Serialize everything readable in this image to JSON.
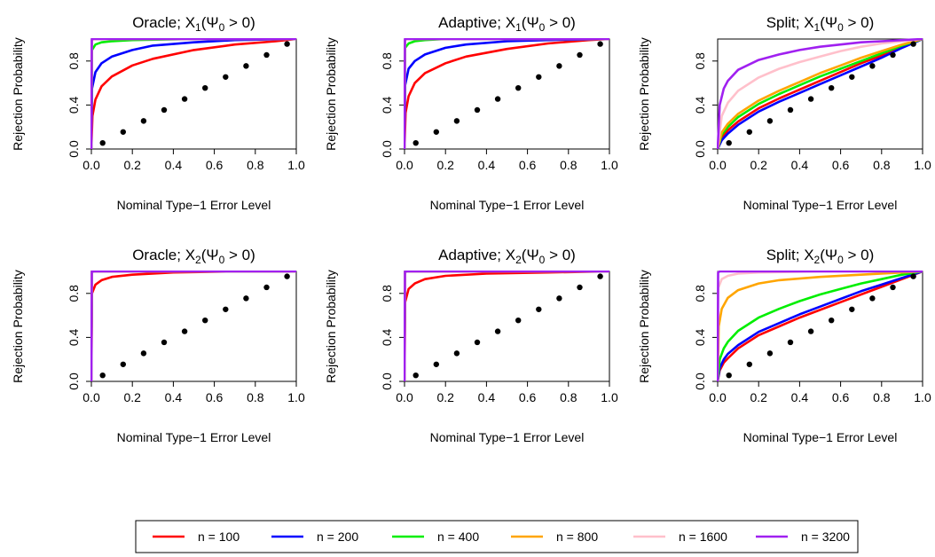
{
  "figure": {
    "legend_entries": [
      {
        "label": "n = 100",
        "color": "#ff0000"
      },
      {
        "label": "n = 200",
        "color": "#0000ff"
      },
      {
        "label": "n = 400",
        "color": "#00ee00"
      },
      {
        "label": "n = 800",
        "color": "#ffa500"
      },
      {
        "label": "n = 1600",
        "color": "#ffc0cb"
      },
      {
        "label": "n = 3200",
        "color": "#a020f0"
      }
    ]
  },
  "chart_data": [
    {
      "type": "line",
      "title": {
        "prefix": "Oracle; X",
        "sub": "1",
        "suffix": "(Ψ",
        "sub2": "0",
        "rest": " > 0)"
      },
      "xlabel": "Nominal Type−1 Error Level",
      "ylabel": "Rejection Probability",
      "xlim": [
        0,
        1
      ],
      "ylim": [
        0,
        1
      ],
      "xticks": [
        "0.0",
        "0.2",
        "0.4",
        "0.6",
        "0.8",
        "1.0"
      ],
      "yticks": [
        "0.0",
        "0.4",
        "0.8"
      ],
      "reference_points": [
        0.1,
        0.2,
        0.3,
        0.4,
        0.5,
        0.6,
        0.7,
        0.8,
        0.9,
        1.0
      ],
      "series": [
        {
          "name": "n = 100",
          "color": "#ff0000",
          "x": [
            0,
            0.005,
            0.02,
            0.05,
            0.1,
            0.2,
            0.3,
            0.5,
            0.7,
            0.9,
            1.0
          ],
          "y": [
            0,
            0.3,
            0.45,
            0.57,
            0.66,
            0.76,
            0.82,
            0.9,
            0.95,
            0.98,
            1.0
          ]
        },
        {
          "name": "n = 200",
          "color": "#0000ff",
          "x": [
            0,
            0.003,
            0.02,
            0.05,
            0.1,
            0.2,
            0.3,
            0.5,
            0.7,
            1.0
          ],
          "y": [
            0,
            0.55,
            0.7,
            0.78,
            0.84,
            0.9,
            0.94,
            0.97,
            0.99,
            1.0
          ]
        },
        {
          "name": "n = 400",
          "color": "#00ee00",
          "x": [
            0,
            0.003,
            0.02,
            0.05,
            0.1,
            0.2,
            0.5,
            1.0
          ],
          "y": [
            0,
            0.9,
            0.95,
            0.97,
            0.98,
            0.99,
            1.0,
            1.0
          ]
        },
        {
          "name": "n = 800",
          "color": "#ffa500",
          "x": [
            0,
            0.002,
            0.01,
            0.05,
            1.0
          ],
          "y": [
            0,
            0.99,
            1.0,
            1.0,
            1.0
          ]
        },
        {
          "name": "n = 1600",
          "color": "#ffc0cb",
          "x": [
            0,
            0.002,
            0.01,
            1.0
          ],
          "y": [
            0,
            1.0,
            1.0,
            1.0
          ]
        },
        {
          "name": "n = 3200",
          "color": "#a020f0",
          "x": [
            0,
            0.002,
            1.0
          ],
          "y": [
            0,
            1.0,
            1.0
          ]
        }
      ]
    },
    {
      "type": "line",
      "title": {
        "prefix": "Adaptive; X",
        "sub": "1",
        "suffix": "(Ψ",
        "sub2": "0",
        "rest": " > 0)"
      },
      "xlabel": "Nominal Type−1 Error Level",
      "ylabel": "Rejection Probability",
      "xlim": [
        0,
        1
      ],
      "ylim": [
        0,
        1
      ],
      "xticks": [
        "0.0",
        "0.2",
        "0.4",
        "0.6",
        "0.8",
        "1.0"
      ],
      "yticks": [
        "0.0",
        "0.4",
        "0.8"
      ],
      "reference_points": [
        0.1,
        0.2,
        0.3,
        0.4,
        0.5,
        0.6,
        0.7,
        0.8,
        0.9,
        1.0
      ],
      "series": [
        {
          "name": "n = 100",
          "color": "#ff0000",
          "x": [
            0,
            0.005,
            0.02,
            0.05,
            0.1,
            0.2,
            0.3,
            0.5,
            0.7,
            0.9,
            1.0
          ],
          "y": [
            0,
            0.33,
            0.48,
            0.6,
            0.69,
            0.78,
            0.84,
            0.91,
            0.96,
            0.99,
            1.0
          ]
        },
        {
          "name": "n = 200",
          "color": "#0000ff",
          "x": [
            0,
            0.003,
            0.02,
            0.05,
            0.1,
            0.2,
            0.3,
            0.5,
            0.7,
            1.0
          ],
          "y": [
            0,
            0.58,
            0.73,
            0.8,
            0.86,
            0.92,
            0.95,
            0.98,
            0.99,
            1.0
          ]
        },
        {
          "name": "n = 400",
          "color": "#00ee00",
          "x": [
            0,
            0.003,
            0.02,
            0.05,
            0.1,
            0.2,
            0.5,
            1.0
          ],
          "y": [
            0,
            0.92,
            0.96,
            0.98,
            0.99,
            1.0,
            1.0,
            1.0
          ]
        },
        {
          "name": "n = 800",
          "color": "#ffa500",
          "x": [
            0,
            0.002,
            0.01,
            1.0
          ],
          "y": [
            0,
            0.99,
            1.0,
            1.0
          ]
        },
        {
          "name": "n = 1600",
          "color": "#ffc0cb",
          "x": [
            0,
            0.002,
            0.01,
            1.0
          ],
          "y": [
            0,
            1.0,
            1.0,
            1.0
          ]
        },
        {
          "name": "n = 3200",
          "color": "#a020f0",
          "x": [
            0,
            0.002,
            1.0
          ],
          "y": [
            0,
            1.0,
            1.0
          ]
        }
      ]
    },
    {
      "type": "line",
      "title": {
        "prefix": "Split; X",
        "sub": "1",
        "suffix": "(Ψ",
        "sub2": "0",
        "rest": " > 0)"
      },
      "xlabel": "Nominal Type−1 Error Level",
      "ylabel": "Rejection Probability",
      "xlim": [
        0,
        1
      ],
      "ylim": [
        0,
        1
      ],
      "xticks": [
        "0.0",
        "0.2",
        "0.4",
        "0.6",
        "0.8",
        "1.0"
      ],
      "yticks": [
        "0.0",
        "0.4",
        "0.8"
      ],
      "reference_points": [
        0.1,
        0.2,
        0.3,
        0.4,
        0.5,
        0.6,
        0.7,
        0.8,
        0.9,
        1.0
      ],
      "series": [
        {
          "name": "n = 100",
          "color": "#ff0000",
          "x": [
            0,
            0.02,
            0.05,
            0.1,
            0.2,
            0.3,
            0.4,
            0.5,
            0.6,
            0.7,
            0.8,
            0.9,
            1.0
          ],
          "y": [
            0,
            0.1,
            0.17,
            0.25,
            0.37,
            0.46,
            0.54,
            0.62,
            0.7,
            0.78,
            0.85,
            0.93,
            1.0
          ]
        },
        {
          "name": "n = 200",
          "color": "#0000ff",
          "x": [
            0,
            0.02,
            0.05,
            0.1,
            0.2,
            0.3,
            0.4,
            0.5,
            0.6,
            0.7,
            0.8,
            0.9,
            1.0
          ],
          "y": [
            0,
            0.08,
            0.14,
            0.22,
            0.34,
            0.43,
            0.51,
            0.59,
            0.67,
            0.75,
            0.83,
            0.92,
            1.0
          ]
        },
        {
          "name": "n = 400",
          "color": "#00ee00",
          "x": [
            0,
            0.02,
            0.05,
            0.1,
            0.2,
            0.3,
            0.4,
            0.5,
            0.6,
            0.7,
            0.8,
            0.9,
            1.0
          ],
          "y": [
            0,
            0.13,
            0.2,
            0.29,
            0.41,
            0.5,
            0.58,
            0.66,
            0.73,
            0.8,
            0.87,
            0.94,
            1.0
          ]
        },
        {
          "name": "n = 800",
          "color": "#ffa500",
          "x": [
            0,
            0.02,
            0.05,
            0.1,
            0.2,
            0.3,
            0.4,
            0.5,
            0.6,
            0.7,
            0.8,
            0.9,
            1.0
          ],
          "y": [
            0,
            0.15,
            0.23,
            0.32,
            0.44,
            0.53,
            0.61,
            0.69,
            0.76,
            0.83,
            0.89,
            0.95,
            1.0
          ]
        },
        {
          "name": "n = 1600",
          "color": "#ffc0cb",
          "x": [
            0,
            0.02,
            0.05,
            0.1,
            0.2,
            0.3,
            0.4,
            0.5,
            0.6,
            0.7,
            0.8,
            0.9,
            1.0
          ],
          "y": [
            0,
            0.3,
            0.42,
            0.53,
            0.65,
            0.73,
            0.79,
            0.84,
            0.89,
            0.93,
            0.96,
            0.98,
            1.0
          ]
        },
        {
          "name": "n = 3200",
          "color": "#a020f0",
          "x": [
            0,
            0.01,
            0.03,
            0.05,
            0.1,
            0.2,
            0.3,
            0.4,
            0.5,
            0.6,
            0.7,
            0.8,
            0.9,
            1.0
          ],
          "y": [
            0,
            0.4,
            0.55,
            0.62,
            0.72,
            0.81,
            0.86,
            0.9,
            0.93,
            0.95,
            0.97,
            0.98,
            0.99,
            1.0
          ]
        }
      ]
    },
    {
      "type": "line",
      "title": {
        "prefix": "Oracle; X",
        "sub": "2",
        "suffix": "(Ψ",
        "sub2": "0",
        "rest": " > 0)"
      },
      "xlabel": "Nominal Type−1 Error Level",
      "ylabel": "Rejection Probability",
      "xlim": [
        0,
        1
      ],
      "ylim": [
        0,
        1
      ],
      "xticks": [
        "0.0",
        "0.2",
        "0.4",
        "0.6",
        "0.8",
        "1.0"
      ],
      "yticks": [
        "0.0",
        "0.4",
        "0.8"
      ],
      "reference_points": [
        0.1,
        0.2,
        0.3,
        0.4,
        0.5,
        0.6,
        0.7,
        0.8,
        0.9,
        1.0
      ],
      "series": [
        {
          "name": "n = 100",
          "color": "#ff0000",
          "x": [
            0,
            0.003,
            0.02,
            0.05,
            0.1,
            0.2,
            0.4,
            0.7,
            1.0
          ],
          "y": [
            0,
            0.8,
            0.88,
            0.92,
            0.95,
            0.97,
            0.99,
            1.0,
            1.0
          ]
        },
        {
          "name": "n = 200",
          "color": "#0000ff",
          "x": [
            0,
            0.002,
            0.01,
            1.0
          ],
          "y": [
            0,
            0.99,
            1.0,
            1.0
          ]
        },
        {
          "name": "n = 400",
          "color": "#00ee00",
          "x": [
            0,
            0.002,
            1.0
          ],
          "y": [
            0,
            1.0,
            1.0
          ]
        },
        {
          "name": "n = 800",
          "color": "#ffa500",
          "x": [
            0,
            0.002,
            1.0
          ],
          "y": [
            0,
            1.0,
            1.0
          ]
        },
        {
          "name": "n = 1600",
          "color": "#ffc0cb",
          "x": [
            0,
            0.002,
            1.0
          ],
          "y": [
            0,
            1.0,
            1.0
          ]
        },
        {
          "name": "n = 3200",
          "color": "#a020f0",
          "x": [
            0,
            0.002,
            1.0
          ],
          "y": [
            0,
            1.0,
            1.0
          ]
        }
      ]
    },
    {
      "type": "line",
      "title": {
        "prefix": "Adaptive; X",
        "sub": "2",
        "suffix": "(Ψ",
        "sub2": "0",
        "rest": " > 0)"
      },
      "xlabel": "Nominal Type−1 Error Level",
      "ylabel": "Rejection Probability",
      "xlim": [
        0,
        1
      ],
      "ylim": [
        0,
        1
      ],
      "xticks": [
        "0.0",
        "0.2",
        "0.4",
        "0.6",
        "0.8",
        "1.0"
      ],
      "yticks": [
        "0.0",
        "0.4",
        "0.8"
      ],
      "reference_points": [
        0.1,
        0.2,
        0.3,
        0.4,
        0.5,
        0.6,
        0.7,
        0.8,
        0.9,
        1.0
      ],
      "series": [
        {
          "name": "n = 100",
          "color": "#ff0000",
          "x": [
            0,
            0.003,
            0.02,
            0.05,
            0.1,
            0.2,
            0.4,
            0.7,
            1.0
          ],
          "y": [
            0,
            0.72,
            0.84,
            0.89,
            0.93,
            0.96,
            0.98,
            0.99,
            1.0
          ]
        },
        {
          "name": "n = 200",
          "color": "#0000ff",
          "x": [
            0,
            0.002,
            0.01,
            1.0
          ],
          "y": [
            0,
            0.99,
            1.0,
            1.0
          ]
        },
        {
          "name": "n = 400",
          "color": "#00ee00",
          "x": [
            0,
            0.002,
            1.0
          ],
          "y": [
            0,
            1.0,
            1.0
          ]
        },
        {
          "name": "n = 800",
          "color": "#ffa500",
          "x": [
            0,
            0.002,
            1.0
          ],
          "y": [
            0,
            1.0,
            1.0
          ]
        },
        {
          "name": "n = 1600",
          "color": "#ffc0cb",
          "x": [
            0,
            0.002,
            1.0
          ],
          "y": [
            0,
            1.0,
            1.0
          ]
        },
        {
          "name": "n = 3200",
          "color": "#a020f0",
          "x": [
            0,
            0.002,
            1.0
          ],
          "y": [
            0,
            1.0,
            1.0
          ]
        }
      ]
    },
    {
      "type": "line",
      "title": {
        "prefix": "Split; X",
        "sub": "2",
        "suffix": "(Ψ",
        "sub2": "0",
        "rest": " > 0)"
      },
      "xlabel": "Nominal Type−1 Error Level",
      "ylabel": "Rejection Probability",
      "xlim": [
        0,
        1
      ],
      "ylim": [
        0,
        1
      ],
      "xticks": [
        "0.0",
        "0.2",
        "0.4",
        "0.6",
        "0.8",
        "1.0"
      ],
      "yticks": [
        "0.0",
        "0.4",
        "0.8"
      ],
      "reference_points": [
        0.1,
        0.2,
        0.3,
        0.4,
        0.5,
        0.6,
        0.7,
        0.8,
        0.9,
        1.0
      ],
      "series": [
        {
          "name": "n = 100",
          "color": "#ff0000",
          "x": [
            0,
            0.01,
            0.03,
            0.05,
            0.1,
            0.2,
            0.3,
            0.4,
            0.5,
            0.6,
            0.7,
            0.8,
            0.9,
            1.0
          ],
          "y": [
            0,
            0.1,
            0.17,
            0.21,
            0.3,
            0.42,
            0.5,
            0.58,
            0.65,
            0.72,
            0.79,
            0.86,
            0.93,
            1.0
          ]
        },
        {
          "name": "n = 200",
          "color": "#0000ff",
          "x": [
            0,
            0.01,
            0.03,
            0.05,
            0.1,
            0.2,
            0.3,
            0.4,
            0.5,
            0.6,
            0.7,
            0.8,
            0.9,
            1.0
          ],
          "y": [
            0,
            0.12,
            0.2,
            0.25,
            0.33,
            0.45,
            0.53,
            0.61,
            0.68,
            0.75,
            0.82,
            0.88,
            0.94,
            1.0
          ]
        },
        {
          "name": "n = 400",
          "color": "#00ee00",
          "x": [
            0,
            0.01,
            0.03,
            0.05,
            0.1,
            0.2,
            0.3,
            0.4,
            0.5,
            0.6,
            0.7,
            0.8,
            0.9,
            1.0
          ],
          "y": [
            0,
            0.2,
            0.3,
            0.36,
            0.46,
            0.58,
            0.66,
            0.73,
            0.79,
            0.84,
            0.89,
            0.93,
            0.97,
            1.0
          ]
        },
        {
          "name": "n = 800",
          "color": "#ffa500",
          "x": [
            0,
            0.005,
            0.02,
            0.05,
            0.1,
            0.2,
            0.3,
            0.5,
            0.7,
            0.9,
            1.0
          ],
          "y": [
            0,
            0.5,
            0.66,
            0.76,
            0.83,
            0.89,
            0.92,
            0.95,
            0.97,
            0.99,
            1.0
          ]
        },
        {
          "name": "n = 1600",
          "color": "#ffc0cb",
          "x": [
            0,
            0.003,
            0.02,
            0.05,
            0.1,
            0.2,
            0.5,
            1.0
          ],
          "y": [
            0,
            0.85,
            0.93,
            0.96,
            0.98,
            0.99,
            1.0,
            1.0
          ]
        },
        {
          "name": "n = 3200",
          "color": "#a020f0",
          "x": [
            0,
            0.002,
            0.01,
            1.0
          ],
          "y": [
            0,
            0.99,
            1.0,
            1.0
          ]
        }
      ]
    }
  ]
}
